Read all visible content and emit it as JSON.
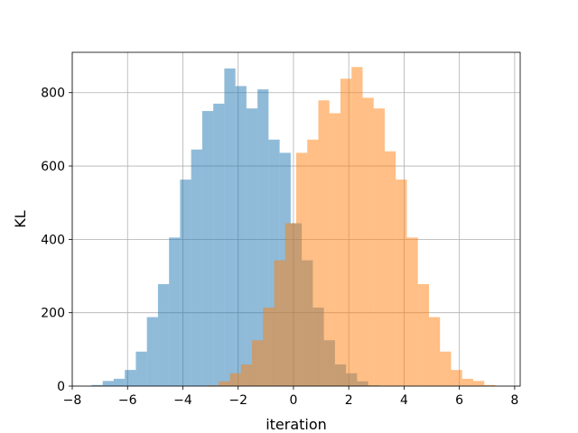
{
  "chart_data": {
    "type": "histogram",
    "xlabel": "iteration",
    "ylabel": "KL",
    "xlim": [
      -8.0,
      8.2
    ],
    "ylim": [
      0,
      910
    ],
    "xticks": [
      -8,
      -6,
      -4,
      -2,
      0,
      2,
      4,
      6,
      8
    ],
    "xtick_labels": [
      "−8",
      "−6",
      "−4",
      "−2",
      "0",
      "2",
      "4",
      "6",
      "8"
    ],
    "yticks": [
      0,
      200,
      400,
      600,
      800
    ],
    "ytick_labels": [
      "0",
      "200",
      "400",
      "600",
      "800"
    ],
    "grid": true,
    "legend": "none",
    "series": [
      {
        "color": "#1f77b4",
        "alpha": 0.5,
        "edges": [
          -7.3,
          -6.9,
          -6.5,
          -6.1,
          -5.7,
          -5.3,
          -4.9,
          -4.5,
          -4.1,
          -3.7,
          -3.3,
          -2.9,
          -2.5,
          -2.1,
          -1.7,
          -1.3,
          -0.9,
          -0.5,
          -0.1,
          0.3,
          0.7,
          1.1,
          1.5,
          1.9,
          2.3,
          2.7,
          3.1
        ],
        "values": [
          3,
          14,
          20,
          44,
          94,
          188,
          278,
          405,
          563,
          645,
          750,
          770,
          866,
          818,
          757,
          809,
          672,
          636,
          444,
          343,
          214,
          125,
          59,
          35,
          13,
          2
        ]
      },
      {
        "color": "#ff7f0e",
        "alpha": 0.5,
        "edges": [
          -3.1,
          -2.7,
          -2.3,
          -1.9,
          -1.5,
          -1.1,
          -0.7,
          -0.3,
          0.1,
          0.5,
          0.9,
          1.3,
          1.7,
          2.1,
          2.5,
          2.9,
          3.3,
          3.7,
          4.1,
          4.5,
          4.9,
          5.3,
          5.7,
          6.1,
          6.5,
          6.9,
          7.3
        ],
        "values": [
          2,
          13,
          35,
          59,
          125,
          214,
          343,
          444,
          636,
          672,
          779,
          744,
          838,
          870,
          786,
          757,
          640,
          563,
          405,
          278,
          188,
          94,
          44,
          20,
          14,
          3
        ]
      }
    ]
  }
}
